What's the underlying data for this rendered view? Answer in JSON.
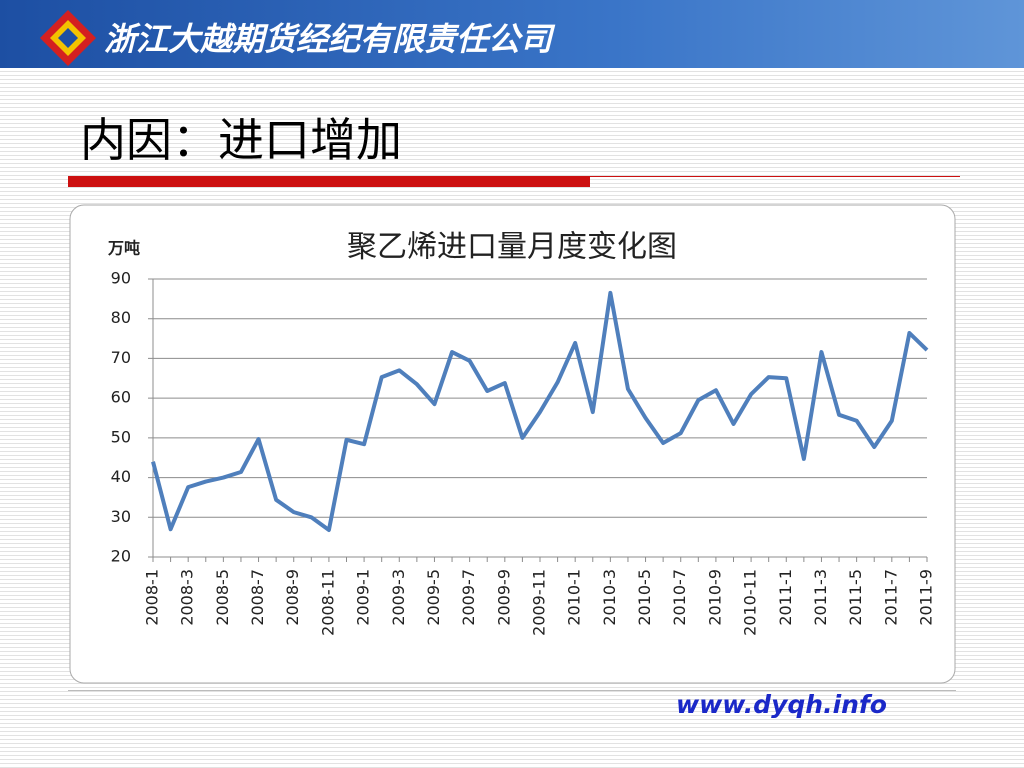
{
  "header": {
    "company": "浙江大越期货经纪有限责任公司"
  },
  "slide_title": "内因：进口增加",
  "chart_data": {
    "type": "line",
    "title": "聚乙烯进口量月度变化图",
    "y_label": "万吨",
    "categories": [
      "2008-1",
      null,
      "2008-3",
      null,
      "2008-5",
      null,
      "2008-7",
      null,
      "2008-9",
      null,
      "2008-11",
      null,
      "2009-1",
      null,
      "2009-3",
      null,
      "2009-5",
      null,
      "2009-7",
      null,
      "2009-9",
      null,
      "2009-11",
      null,
      "2010-1",
      null,
      "2010-3",
      null,
      "2010-5",
      null,
      "2010-7",
      null,
      "2010-9",
      null,
      "2010-11",
      null,
      "2011-1",
      null,
      "2011-3",
      null,
      "2011-5",
      null,
      "2011-7",
      null,
      "2011-9"
    ],
    "values": [
      44,
      27,
      37.6,
      39,
      40,
      41.4,
      49.7,
      34.4,
      31.3,
      30,
      26.8,
      49.5,
      48.4,
      65.3,
      67,
      63.5,
      58.5,
      71.6,
      69.4,
      61.8,
      63.8,
      50,
      56.5,
      64,
      73.9,
      56.5,
      86.5,
      62.3,
      55,
      48.7,
      51.2,
      59.5,
      62,
      53.5,
      61,
      65.3,
      65,
      44.7,
      71.6,
      55.8,
      54.3,
      47.7,
      54.3,
      76.4,
      72.1
    ],
    "color": "#4f7fbc",
    "ylim": [
      20,
      90
    ],
    "yticks": [
      20,
      30,
      40,
      50,
      60,
      70,
      80,
      90
    ],
    "grid": true
  },
  "footer": {
    "url": "www.dyqh.info"
  }
}
